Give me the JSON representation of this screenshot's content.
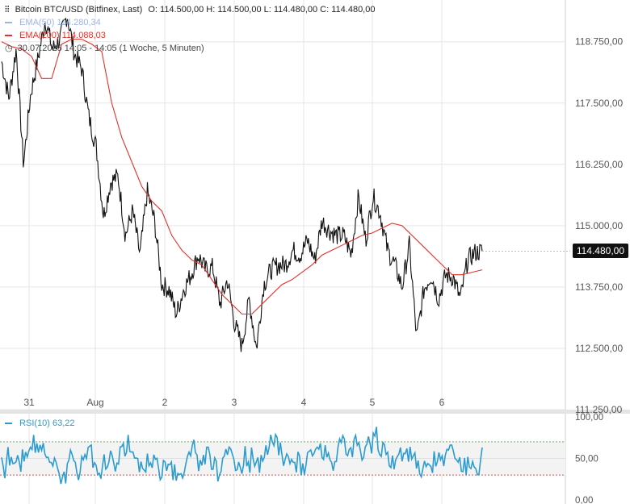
{
  "header": {
    "instrument": "Bitcoin BTC/USD (Bitfinex, Last)",
    "ohlc": "O: 114.500,00   H: 114.500,00   L: 114.480,00   C: 114.480,00",
    "ema50": "EMA(50)  114.280,34",
    "ema200": "EMA(200)  114.088,03",
    "range": "30.07.2025 14:05 - 14:05   (1 Woche, 5 Minuten)"
  },
  "colors": {
    "price": "#111111",
    "ema50": "#9fb3df",
    "ema200": "#e0322a",
    "rsi": "#2b9ccf",
    "grid": "#e6e6e6"
  },
  "last_price_label": "114.480,00",
  "rsi_label": "RSI(10)  63,22",
  "chart_data": {
    "type": "line",
    "x_labels": [
      "31",
      "Aug",
      "2",
      "3",
      "4",
      "5",
      "6"
    ],
    "y_ticks": [
      "118.750,00",
      "117.500,00",
      "116.250,00",
      "115.000,00",
      "113.750,00",
      "112.500,00",
      "111.250,00"
    ],
    "y_tick_values": [
      118750,
      117500,
      116250,
      115000,
      113750,
      112500,
      111250
    ],
    "ylim": [
      111250,
      119600
    ],
    "series": [
      {
        "name": "Bitcoin BTC/USD",
        "values": [
          118350,
          117600,
          118600,
          116250,
          117700,
          118400,
          119200,
          118600,
          118800,
          119300,
          118500,
          118200,
          117200,
          116600,
          115200,
          115900,
          116000,
          114800,
          115300,
          114400,
          115700,
          115100,
          113800,
          113700,
          113200,
          113700,
          114000,
          114400,
          114100,
          114150,
          113400,
          113900,
          113000,
          112550,
          113500,
          112500,
          113800,
          114100,
          114200,
          114200,
          114500,
          114400,
          114700,
          114300,
          115100,
          114900,
          114800,
          114800,
          114400,
          115600,
          114700,
          115600,
          115250,
          114500,
          114200,
          113750,
          114600,
          112700,
          113700,
          114000,
          113500,
          114000,
          113950,
          113500,
          114300,
          114450,
          114480
        ]
      },
      {
        "name": "EMA(200)",
        "values": [
          118750,
          118650,
          118600,
          118450,
          118000,
          118000,
          118700,
          118800,
          118800,
          118700,
          118550,
          117500,
          116800,
          116300,
          115800,
          115500,
          115300,
          114800,
          114500,
          114300,
          114200,
          113900,
          113600,
          113400,
          113200,
          113200,
          113400,
          113600,
          113800,
          113900,
          114050,
          114200,
          114400,
          114500,
          114600,
          114700,
          114800,
          114850,
          114950,
          115050,
          115000,
          114800,
          114600,
          114400,
          114200,
          114000,
          114000,
          114050,
          114100
        ]
      }
    ],
    "rsi": {
      "ylim": [
        0,
        100
      ],
      "y_ticks": [
        "100,00",
        "50,00",
        "0,00"
      ],
      "upper": 70,
      "lower": 30,
      "last": 63.22
    }
  }
}
